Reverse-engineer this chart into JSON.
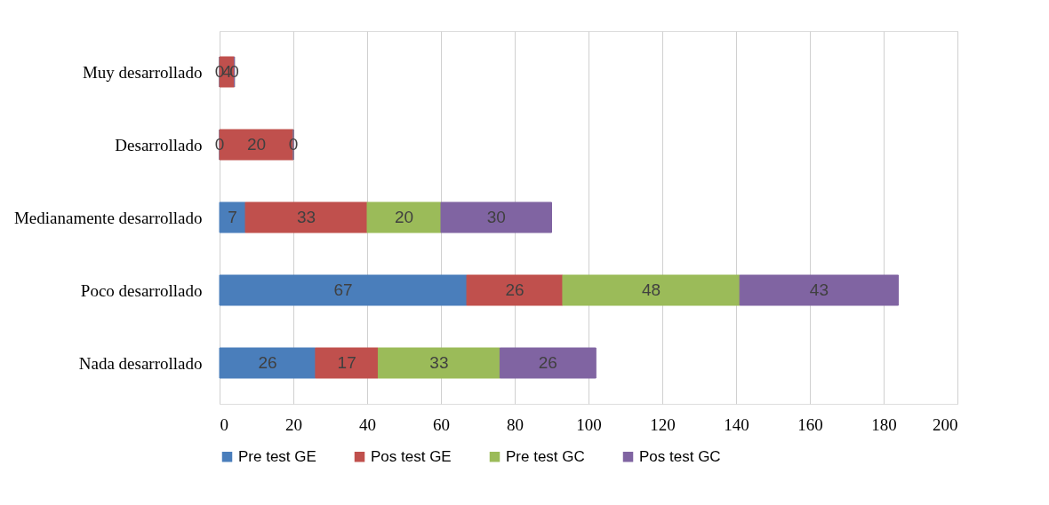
{
  "chart_data": {
    "type": "bar",
    "orientation": "horizontal",
    "stacked": true,
    "categories": [
      "Muy desarrollado",
      "Desarrollado",
      "Medianamente desarrollado",
      "Poco desarrollado",
      "Nada desarrollado"
    ],
    "series": [
      {
        "name": "Pre test GE",
        "color": "#4a7ebb",
        "values": [
          0,
          0,
          7,
          67,
          26
        ],
        "value_labels": [
          "0",
          "0",
          "7",
          "67",
          "26"
        ]
      },
      {
        "name": "Pos test GE",
        "color": "#c0504d",
        "values": [
          4,
          20,
          33,
          26,
          17
        ],
        "value_labels": [
          "4",
          "20",
          "33",
          "26",
          "17"
        ]
      },
      {
        "name": "Pre test GC",
        "color": "#9bbb59",
        "values": [
          0,
          0,
          20,
          48,
          33
        ],
        "value_labels": [
          "0",
          "0",
          "20",
          "48",
          "33"
        ]
      },
      {
        "name": "Pos test GC",
        "color": "#8064a2",
        "values": [
          0,
          0,
          30,
          43,
          26
        ],
        "value_labels": [
          null,
          null,
          "30",
          "43",
          "26"
        ]
      }
    ],
    "xlim": [
      0,
      200
    ],
    "xticks": [
      0,
      20,
      40,
      60,
      80,
      100,
      120,
      140,
      160,
      180,
      200
    ],
    "grid": "x",
    "legend": "bottom"
  }
}
